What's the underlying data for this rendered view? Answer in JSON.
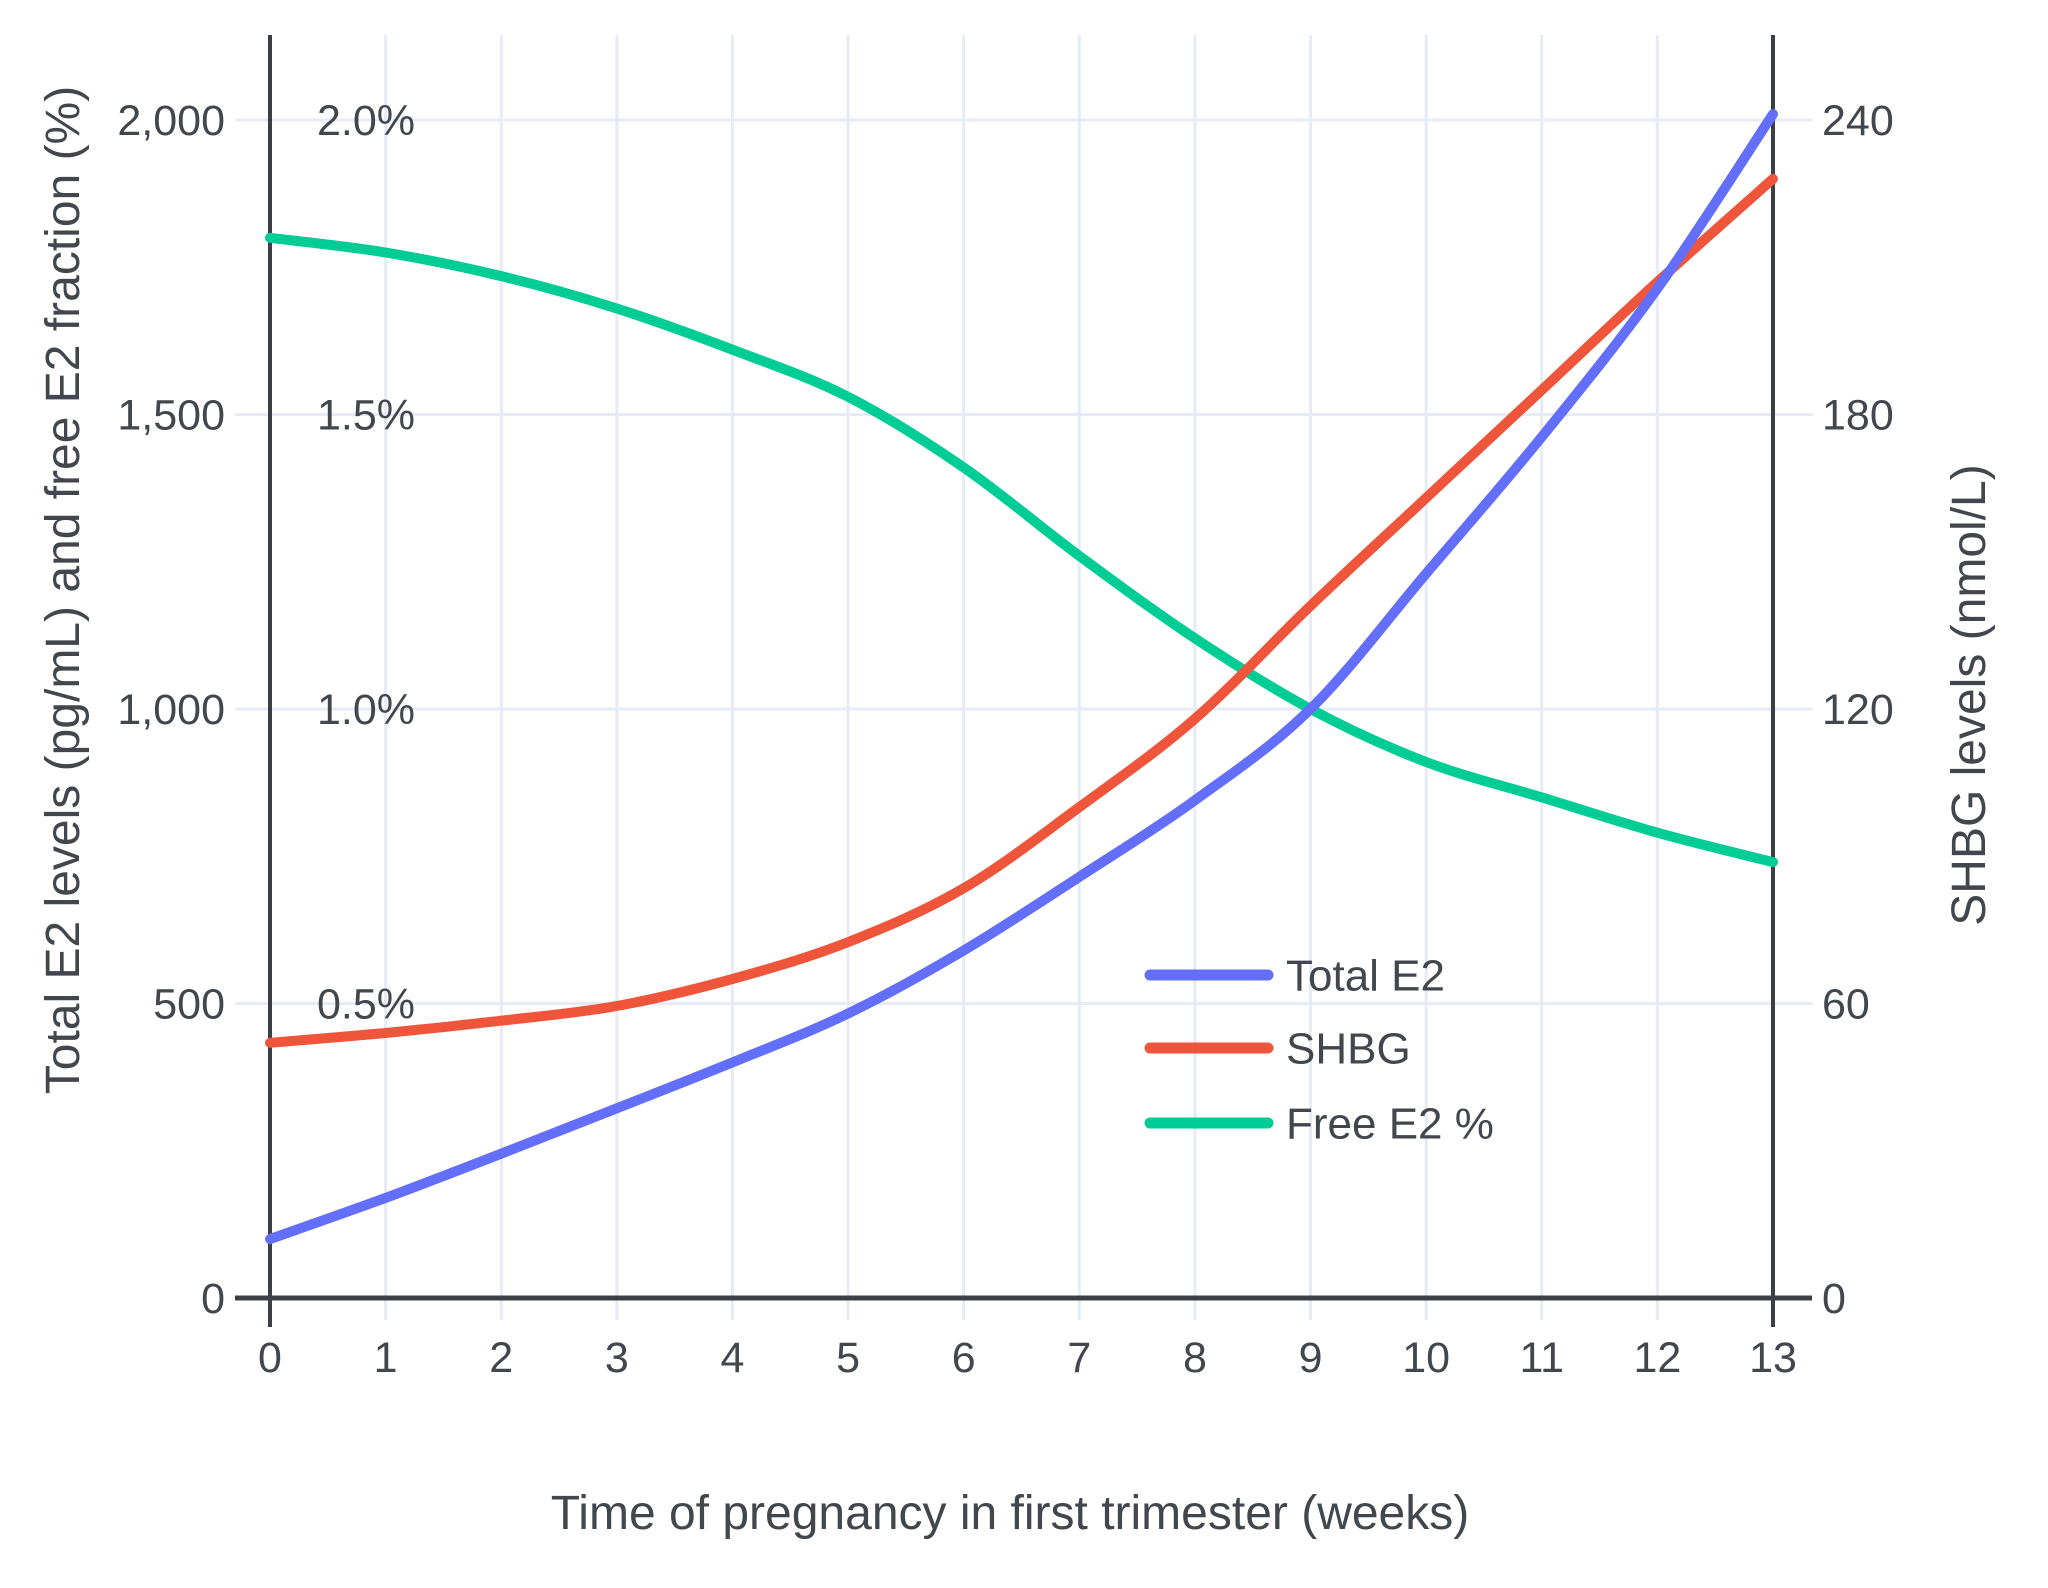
{
  "chart_data": {
    "type": "line",
    "title": "",
    "xlabel": "Time of pregnancy in first trimester (weeks)",
    "ylabel_left": "Total E2 levels (pg/mL) and free E2 fraction (%)",
    "ylabel_right": "SHBG levels (nmol/L)",
    "x": [
      0,
      1,
      2,
      3,
      4,
      5,
      6,
      7,
      8,
      9,
      10,
      11,
      12,
      13
    ],
    "xlim": [
      0,
      13
    ],
    "ylim_left": [
      0,
      2200
    ],
    "ylim_right": [
      0,
      264
    ],
    "grid": true,
    "legend_position": "inside-right-middle",
    "y_left_ticks": [
      {
        "value": 0,
        "label": "0"
      },
      {
        "value": 500,
        "label": "500"
      },
      {
        "value": 1000,
        "label": "1,000"
      },
      {
        "value": 1500,
        "label": "1,500"
      },
      {
        "value": 2000,
        "label": "2,000"
      }
    ],
    "pct_ticks": [
      {
        "value": 500,
        "label": "0.5%"
      },
      {
        "value": 1000,
        "label": "1.0%"
      },
      {
        "value": 1500,
        "label": "1.5%"
      },
      {
        "value": 2000,
        "label": "2.0%"
      }
    ],
    "y_right_ticks": [
      {
        "value": 0,
        "label": "0"
      },
      {
        "value": 60,
        "label": "60"
      },
      {
        "value": 120,
        "label": "120"
      },
      {
        "value": 180,
        "label": "180"
      },
      {
        "value": 240,
        "label": "240"
      }
    ],
    "x_tick_labels": [
      "0",
      "1",
      "2",
      "3",
      "4",
      "5",
      "6",
      "7",
      "8",
      "9",
      "10",
      "11",
      "12",
      "13"
    ],
    "series": [
      {
        "name": "Total E2",
        "axis": "left",
        "unit": "pg/mL",
        "color": "#636efa",
        "values": [
          100,
          170,
          245,
          322,
          400,
          483,
          590,
          715,
          845,
          1000,
          1230,
          1462,
          1714,
          2010
        ]
      },
      {
        "name": "SHBG",
        "axis": "right",
        "unit": "nmol/L",
        "color": "#ef553b",
        "values": [
          52,
          54,
          56.5,
          59.5,
          65,
          72.5,
          83.5,
          100,
          118,
          141,
          163,
          185,
          207,
          228
        ]
      },
      {
        "name": "Free E2 %",
        "axis": "left_pct",
        "unit": "%",
        "color": "#00cc96",
        "values": [
          1.8,
          1.775,
          1.735,
          1.68,
          1.61,
          1.53,
          1.41,
          1.26,
          1.12,
          1.0,
          0.91,
          0.85,
          0.79,
          0.74
        ]
      }
    ],
    "colors": {
      "grid": "#e6ebf5",
      "axis": "#3c4046",
      "text": "#42464d",
      "background": "#ffffff"
    }
  }
}
